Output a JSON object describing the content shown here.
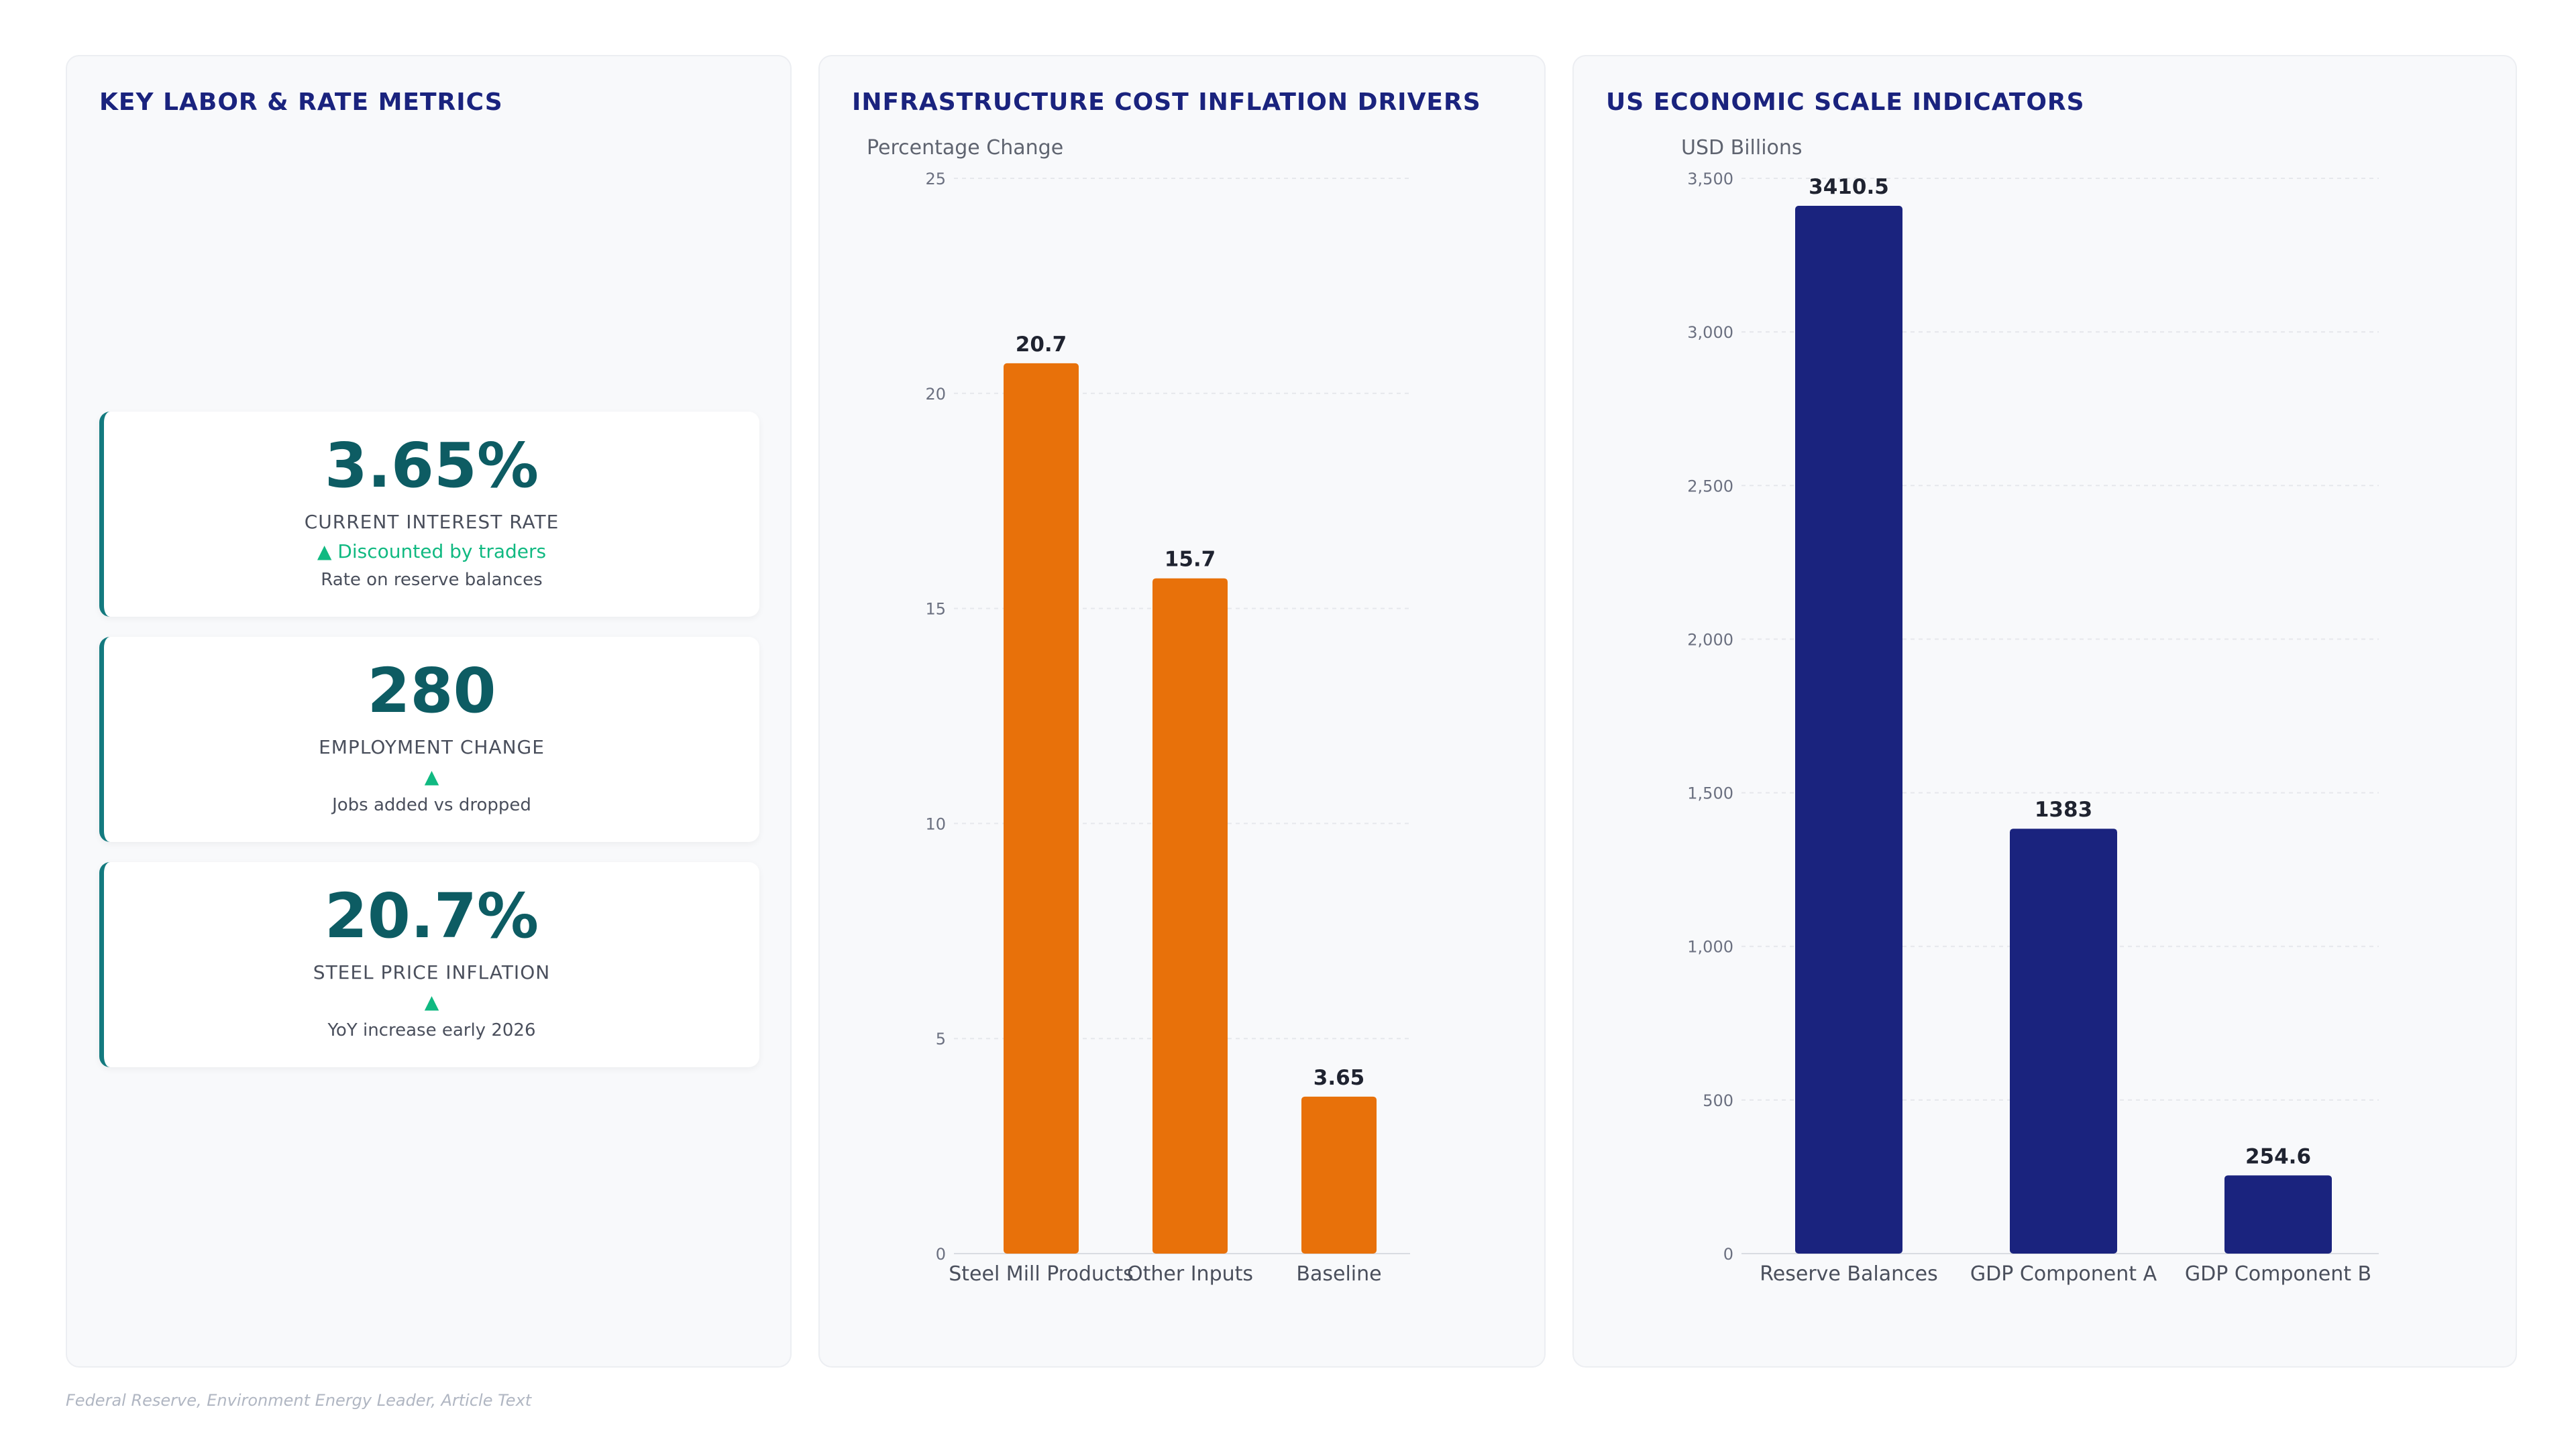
{
  "kpi_panel": {
    "title": "KEY LABOR & RATE METRICS",
    "cards": [
      {
        "value": "3.65%",
        "label": "CURRENT INTEREST RATE",
        "trend": "▲ Discounted by traders",
        "sub": "Rate on reserve balances"
      },
      {
        "value": "280",
        "label": "EMPLOYMENT CHANGE",
        "trend": "▲",
        "sub": "Jobs added vs dropped"
      },
      {
        "value": "20.7%",
        "label": "STEEL PRICE INFLATION",
        "trend": "▲",
        "sub": "YoY increase early 2026"
      }
    ]
  },
  "chart_data": [
    {
      "type": "bar",
      "title": "INFRASTRUCTURE COST INFLATION DRIVERS",
      "ylabel": "Percentage Change",
      "categories": [
        "Steel Mill Products",
        "Other Inputs",
        "Baseline"
      ],
      "values": [
        20.7,
        15.7,
        3.65
      ],
      "value_labels": [
        "20.7",
        "15.7",
        "3.65"
      ],
      "ylim": [
        0,
        25
      ],
      "yticks": [
        0,
        5,
        10,
        15,
        20,
        25
      ],
      "ytick_labels": [
        "0",
        "5",
        "10",
        "15",
        "20",
        "25"
      ],
      "color": "#e8710a",
      "grid": true
    },
    {
      "type": "bar",
      "title": "US ECONOMIC SCALE INDICATORS",
      "ylabel": "USD Billions",
      "categories": [
        "Reserve Balances",
        "GDP Component A",
        "GDP Component B"
      ],
      "values": [
        3410.5,
        1383,
        254.6
      ],
      "value_labels": [
        "3410.5",
        "1383",
        "254.6"
      ],
      "ylim": [
        0,
        3500
      ],
      "yticks": [
        0,
        500,
        1000,
        1500,
        2000,
        2500,
        3000,
        3500
      ],
      "ytick_labels": [
        "0",
        "500",
        "1,000",
        "1,500",
        "2,000",
        "2,500",
        "3,000",
        "3,500"
      ],
      "color": "#1a237e",
      "grid": true
    }
  ],
  "footer": {
    "source": "Federal Reserve, Environment Energy Leader, Article Text"
  }
}
